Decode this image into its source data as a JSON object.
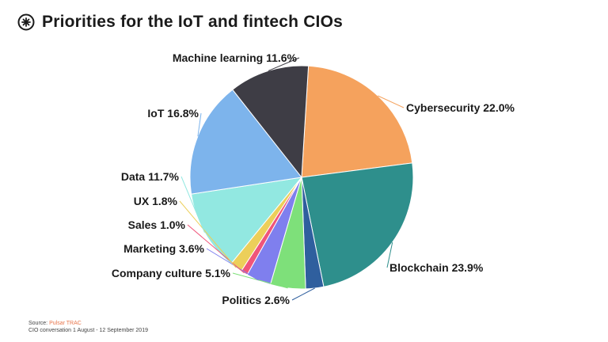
{
  "header": {
    "title": "Priorities for the IoT and fintech CIOs",
    "logo_icon": "pulsar-logo-icon"
  },
  "footer": {
    "source_label": "Source:",
    "source_name": "Pulsar TRAC",
    "period": "CIO conversation 1 August - 12 September 2019"
  },
  "chart_data": {
    "type": "pie",
    "title": "Priorities for the IoT and fintech CIOs",
    "unit": "%",
    "slices": [
      {
        "label": "Cybersecurity",
        "value": 22.0,
        "display": "Cybersecurity 22.0%",
        "color": "#f5a25d"
      },
      {
        "label": "Blockchain",
        "value": 23.9,
        "display": "Blockchain 23.9%",
        "color": "#2e8f8c"
      },
      {
        "label": "Politics",
        "value": 2.6,
        "display": "Politics 2.6%",
        "color": "#2f5f9e"
      },
      {
        "label": "Company culture",
        "value": 5.1,
        "display": "Company culture 5.1%",
        "color": "#7ee07a"
      },
      {
        "label": "Marketing",
        "value": 3.6,
        "display": "Marketing 3.6%",
        "color": "#7f7fee"
      },
      {
        "label": "Sales",
        "value": 1.0,
        "display": "Sales 1.0%",
        "color": "#f0557a"
      },
      {
        "label": "UX",
        "value": 1.8,
        "display": "UX 1.8%",
        "color": "#eccf5a"
      },
      {
        "label": "Data",
        "value": 11.7,
        "display": "Data 11.7%",
        "color": "#92e8e1"
      },
      {
        "label": "IoT",
        "value": 16.8,
        "display": "IoT 16.8%",
        "color": "#7db4ec"
      },
      {
        "label": "Machine learning",
        "value": 11.6,
        "display": "Machine learning 11.6%",
        "color": "#3e3d45"
      }
    ]
  }
}
